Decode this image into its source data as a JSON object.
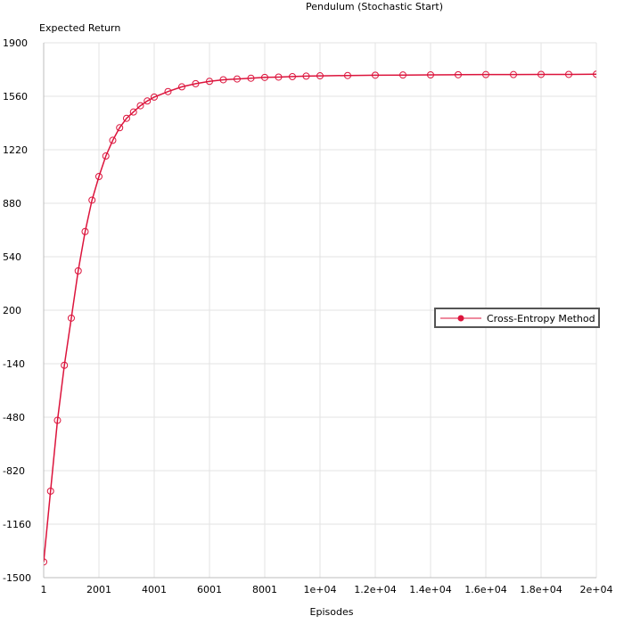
{
  "chart_data": {
    "type": "line",
    "title": "Pendulum (Stochastic Start)",
    "xlabel": "Episodes",
    "ylabel": "Expected Return",
    "xlim": [
      1,
      20000
    ],
    "ylim": [
      -1500,
      1900
    ],
    "x_ticks": [
      {
        "value": 1,
        "label": "1"
      },
      {
        "value": 2001,
        "label": "2001"
      },
      {
        "value": 4001,
        "label": "4001"
      },
      {
        "value": 6001,
        "label": "6001"
      },
      {
        "value": 8001,
        "label": "8001"
      },
      {
        "value": 10000,
        "label": "1e+04"
      },
      {
        "value": 12000,
        "label": "1.2e+04"
      },
      {
        "value": 14000,
        "label": "1.4e+04"
      },
      {
        "value": 16000,
        "label": "1.6e+04"
      },
      {
        "value": 18000,
        "label": "1.8e+04"
      },
      {
        "value": 20000,
        "label": "2e+04"
      }
    ],
    "y_ticks": [
      {
        "value": 1900,
        "label": "1900"
      },
      {
        "value": 1560,
        "label": "1560"
      },
      {
        "value": 1220,
        "label": "1220"
      },
      {
        "value": 880,
        "label": "880"
      },
      {
        "value": 540,
        "label": "540"
      },
      {
        "value": 200,
        "label": "200"
      },
      {
        "value": -140,
        "label": "-140"
      },
      {
        "value": -480,
        "label": "-480"
      },
      {
        "value": -820,
        "label": "-820"
      },
      {
        "value": -1160,
        "label": "-1160"
      },
      {
        "value": -1500,
        "label": "-1500"
      }
    ],
    "grid": true,
    "legend_position": "right",
    "series": [
      {
        "name": "Cross-Entropy Method",
        "color": "#DC143C",
        "marker": "circle",
        "x": [
          1,
          250,
          500,
          750,
          1000,
          1250,
          1500,
          1750,
          2000,
          2250,
          2500,
          2750,
          3000,
          3250,
          3500,
          3750,
          4000,
          4500,
          5000,
          5500,
          6000,
          6500,
          7000,
          7500,
          8000,
          8500,
          9000,
          9500,
          10000,
          11000,
          12000,
          13000,
          14000,
          15000,
          16000,
          17000,
          18000,
          19000,
          20000
        ],
        "y": [
          -1400,
          -950,
          -500,
          -150,
          150,
          450,
          700,
          900,
          1050,
          1180,
          1280,
          1360,
          1420,
          1460,
          1500,
          1530,
          1555,
          1590,
          1620,
          1640,
          1655,
          1665,
          1670,
          1675,
          1680,
          1682,
          1685,
          1688,
          1690,
          1692,
          1694,
          1695,
          1696,
          1697,
          1698,
          1698,
          1699,
          1699,
          1700
        ]
      }
    ]
  }
}
